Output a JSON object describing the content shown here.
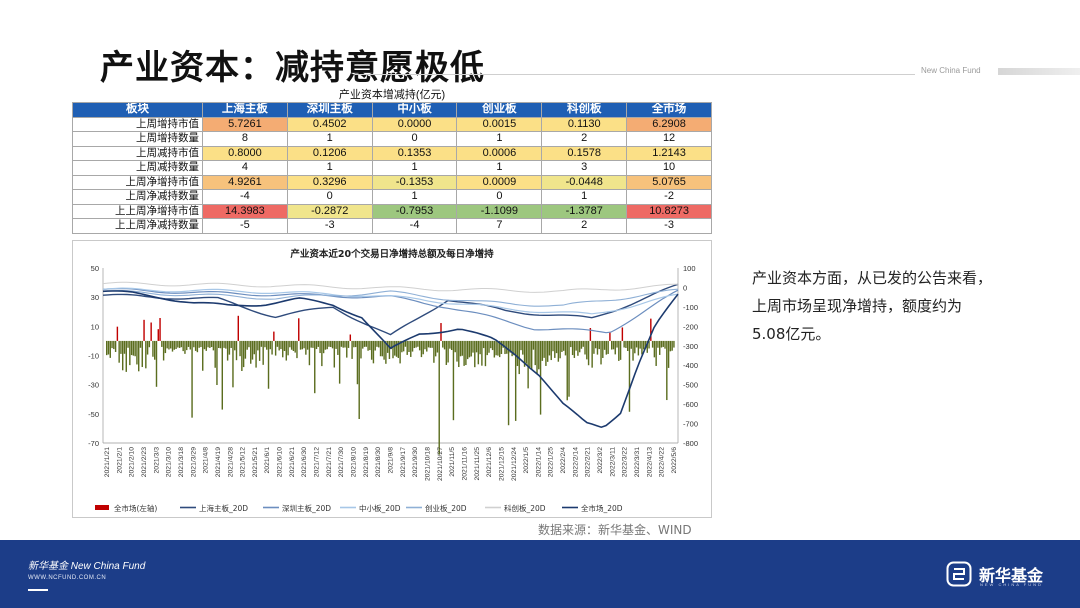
{
  "page_title": "产业资本：减持意愿极低",
  "brand": {
    "english_name": "New China Fund"
  },
  "table": {
    "caption": "产业资本增减持(亿元)",
    "columns": [
      "板块",
      "上海主板",
      "深圳主板",
      "中小板",
      "创业板",
      "科创板",
      "全市场"
    ],
    "rows": [
      {
        "label": "上周增持市值",
        "values": [
          "5.7261",
          "0.4502",
          "0.0000",
          "0.0015",
          "0.1130",
          "6.2908"
        ],
        "colors": [
          "#f4ac73",
          "#fbe087",
          "#fbe087",
          "#fbe087",
          "#fbe087",
          "#f4ac73"
        ]
      },
      {
        "label": "上周增持数量",
        "values": [
          "8",
          "1",
          "0",
          "1",
          "2",
          "12"
        ],
        "colors": [
          "",
          "",
          "",
          "",
          "",
          ""
        ]
      },
      {
        "label": "上周减持市值",
        "values": [
          "0.8000",
          "0.1206",
          "0.1353",
          "0.0006",
          "0.1578",
          "1.2143"
        ],
        "colors": [
          "#fbe087",
          "#fbe087",
          "#fbe087",
          "#fbe087",
          "#fbe087",
          "#fbe087"
        ]
      },
      {
        "label": "上周减持数量",
        "values": [
          "4",
          "1",
          "1",
          "1",
          "3",
          "10"
        ],
        "colors": [
          "",
          "",
          "",
          "",
          "",
          ""
        ]
      },
      {
        "label": "上周净增持市值",
        "values": [
          "4.9261",
          "0.3296",
          "-0.1353",
          "0.0009",
          "-0.0448",
          "5.0765"
        ],
        "colors": [
          "#f7c27c",
          "#fbe087",
          "#f0e58c",
          "#fbe087",
          "#f0e58c",
          "#f7c27c"
        ]
      },
      {
        "label": "上周净减持数量",
        "values": [
          "-4",
          "0",
          "1",
          "0",
          "1",
          "-2"
        ],
        "colors": [
          "",
          "",
          "",
          "",
          "",
          ""
        ]
      },
      {
        "label": "上上周净增持市值",
        "values": [
          "14.3983",
          "-0.2872",
          "-0.7953",
          "-1.1099",
          "-1.3787",
          "10.8273"
        ],
        "colors": [
          "#ee6a64",
          "#f0e58c",
          "#9dc77f",
          "#9dc77f",
          "#9dc77f",
          "#ee6a64"
        ]
      },
      {
        "label": "上上周净减持数量",
        "values": [
          "-5",
          "-3",
          "-4",
          "7",
          "2",
          "-3"
        ],
        "colors": [
          "",
          "",
          "",
          "",
          "",
          ""
        ]
      }
    ]
  },
  "chart_data": {
    "type": "bar+line",
    "title": "产业资本近20个交易日净增持总额及每日净增持",
    "x_ticks": [
      "2021/1/21",
      "2021/2/1",
      "2021/2/10",
      "2021/2/23",
      "2021/3/3",
      "2021/3/10",
      "2021/3/18",
      "2021/3/29",
      "2021/4/8",
      "2021/4/19",
      "2021/4/28",
      "2021/5/12",
      "2021/5/21",
      "2021/6/1",
      "2021/6/10",
      "2021/6/21",
      "2021/6/30",
      "2021/7/12",
      "2021/7/21",
      "2021/7/30",
      "2021/8/10",
      "2021/8/19",
      "2021/8/30",
      "2021/9/8",
      "2021/9/17",
      "2021/9/30",
      "2021/10/18",
      "2021/10/27",
      "2021/11/5",
      "2021/11/16",
      "2021/11/25",
      "2021/12/6",
      "2021/12/15",
      "2021/12/24",
      "2022/1/5",
      "2022/1/14",
      "2022/1/25",
      "2022/2/4",
      "2022/2/14",
      "2022/2/21",
      "2022/3/2",
      "2022/3/11",
      "2022/3/22",
      "2022/3/31",
      "2022/4/13",
      "2022/4/22",
      "2022/5/6"
    ],
    "y_left": {
      "min": -70,
      "max": 50,
      "step": 20
    },
    "y_right": {
      "min": -800,
      "max": 100,
      "step": 100
    },
    "bar_series": {
      "name": "全市场(左轴)",
      "color": "#c00000",
      "neg_color": "#5b6d1f"
    },
    "line_series": [
      {
        "name": "上海主板_20D",
        "color": "#2f4b7c"
      },
      {
        "name": "深圳主板_20D",
        "color": "#6c8ebf"
      },
      {
        "name": "中小板_20D",
        "color": "#a7c7e7"
      },
      {
        "name": "创业板_20D",
        "color": "#8fb0d6"
      },
      {
        "name": "科创板_20D",
        "color": "#d0d0d0"
      },
      {
        "name": "全市场_20D",
        "color": "#1c3a6e"
      }
    ],
    "grid": false,
    "legend_position": "bottom"
  },
  "source_text": "数据来源：新华基金、WIND",
  "description_lines": [
    "产业资本方面，从已发的公告来看，",
    "上周市场呈现净增持，额度约为",
    "5.08亿元。"
  ],
  "footer": {
    "cn_en": "新华基金 New China Fund",
    "url": "WWW.NCFUND.COM.CN",
    "logo_text": "新华基金",
    "logo_sub": "NEW CHINA FUND"
  }
}
